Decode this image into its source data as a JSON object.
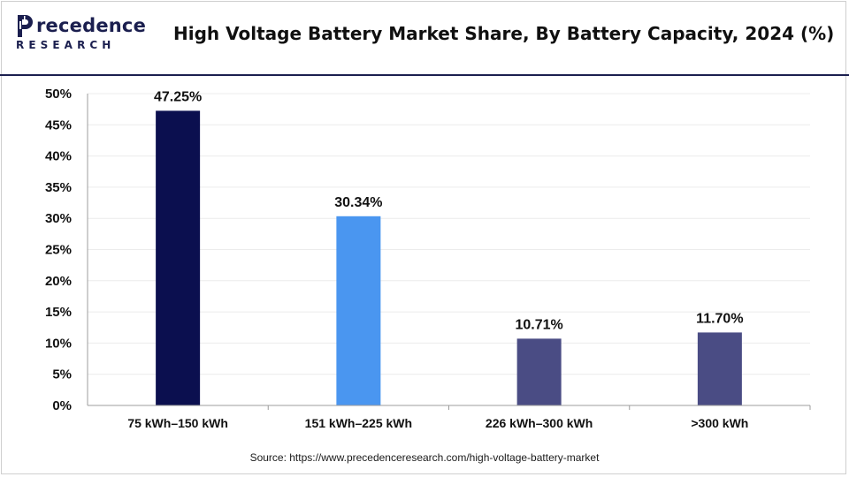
{
  "logo": {
    "word": "recedence",
    "sub": "RESEARCH",
    "name": "Precedence Research"
  },
  "header": {
    "title": "High Voltage Battery Market  Share, By Battery Capacity, 2024 (%)"
  },
  "chart_data": {
    "type": "bar",
    "title": "High Voltage Battery Market  Share, By Battery Capacity, 2024 (%)",
    "xlabel": "",
    "ylabel": "",
    "categories": [
      "75 kWh–150 kWh",
      "151 kWh–225 kWh",
      "226 kWh–300 kWh",
      ">300 kWh"
    ],
    "values": [
      47.25,
      30.34,
      10.71,
      11.7
    ],
    "data_labels": [
      "47.25%",
      "30.34%",
      "10.71%",
      "11.70%"
    ],
    "bar_colors": [
      "#0b0f4f",
      "#4a96f0",
      "#4a4c84",
      "#4a4c84"
    ],
    "ylim": [
      0,
      50
    ],
    "yticks": [
      "0%",
      "5%",
      "10%",
      "15%",
      "20%",
      "25%",
      "30%",
      "35%",
      "40%",
      "45%",
      "50%"
    ],
    "grid": true,
    "legend": "none"
  },
  "footer": {
    "source": "Source: https://www.precedenceresearch.com/high-voltage-battery-market"
  },
  "colors": {
    "brand": "#1b1f4f",
    "grid": "#ececec",
    "axis": "#9c9c9c"
  }
}
